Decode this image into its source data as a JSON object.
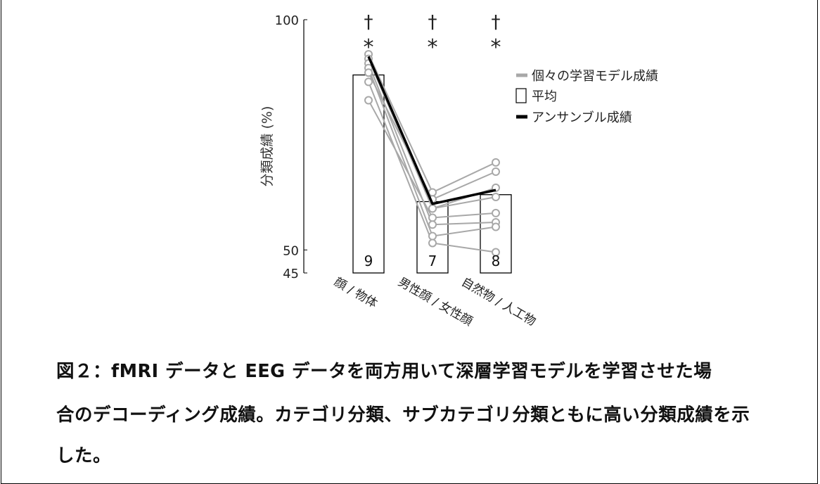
{
  "chart_data": {
    "type": "bar",
    "categories": [
      "顔 / 物体",
      "男性顔 / 女性顔",
      "自然物 / 人工物"
    ],
    "mean_values": [
      88,
      60.5,
      62
    ],
    "bar_counts": [
      "9",
      "7",
      "8"
    ],
    "ylabel": "分類成績 (%)",
    "ylim": [
      45,
      100
    ],
    "yticks": [
      "100",
      "50",
      "45"
    ],
    "grid": false,
    "legend_position": "top-right",
    "significance": {
      "dagger": "†",
      "star": "*",
      "categories": [
        0,
        1,
        2
      ]
    },
    "series": [
      {
        "name": "個々の学習モデル成績",
        "type": "individual-lines",
        "color": "#a8a8a8",
        "pairs_left_to_middle": [
          [
            92.5,
            62.5
          ],
          [
            91.5,
            59
          ],
          [
            90.5,
            55.5
          ],
          [
            89.5,
            53
          ],
          [
            88.5,
            61
          ],
          [
            86.5,
            51.5
          ],
          [
            82.5,
            57
          ]
        ],
        "pairs_middle_to_right": [
          [
            62.5,
            69
          ],
          [
            61,
            67
          ],
          [
            59,
            63.5
          ],
          [
            59,
            61.5
          ],
          [
            57,
            58
          ],
          [
            55.5,
            56
          ],
          [
            53,
            55
          ],
          [
            51.5,
            49.5
          ]
        ]
      },
      {
        "name": "平均",
        "type": "bar",
        "values": [
          88,
          60.5,
          62
        ]
      },
      {
        "name": "アンサンブル成績",
        "type": "line",
        "color": "#000000",
        "values": [
          92,
          60,
          63
        ]
      }
    ]
  },
  "caption": {
    "lines": [
      "図２：fMRI データと EEG データを両方用いて深層学習モデルを学習させた場",
      "合のデコーディング成績。カテゴリ分類、サブカテゴリ分類ともに高い分類成績を示",
      "した。"
    ]
  }
}
